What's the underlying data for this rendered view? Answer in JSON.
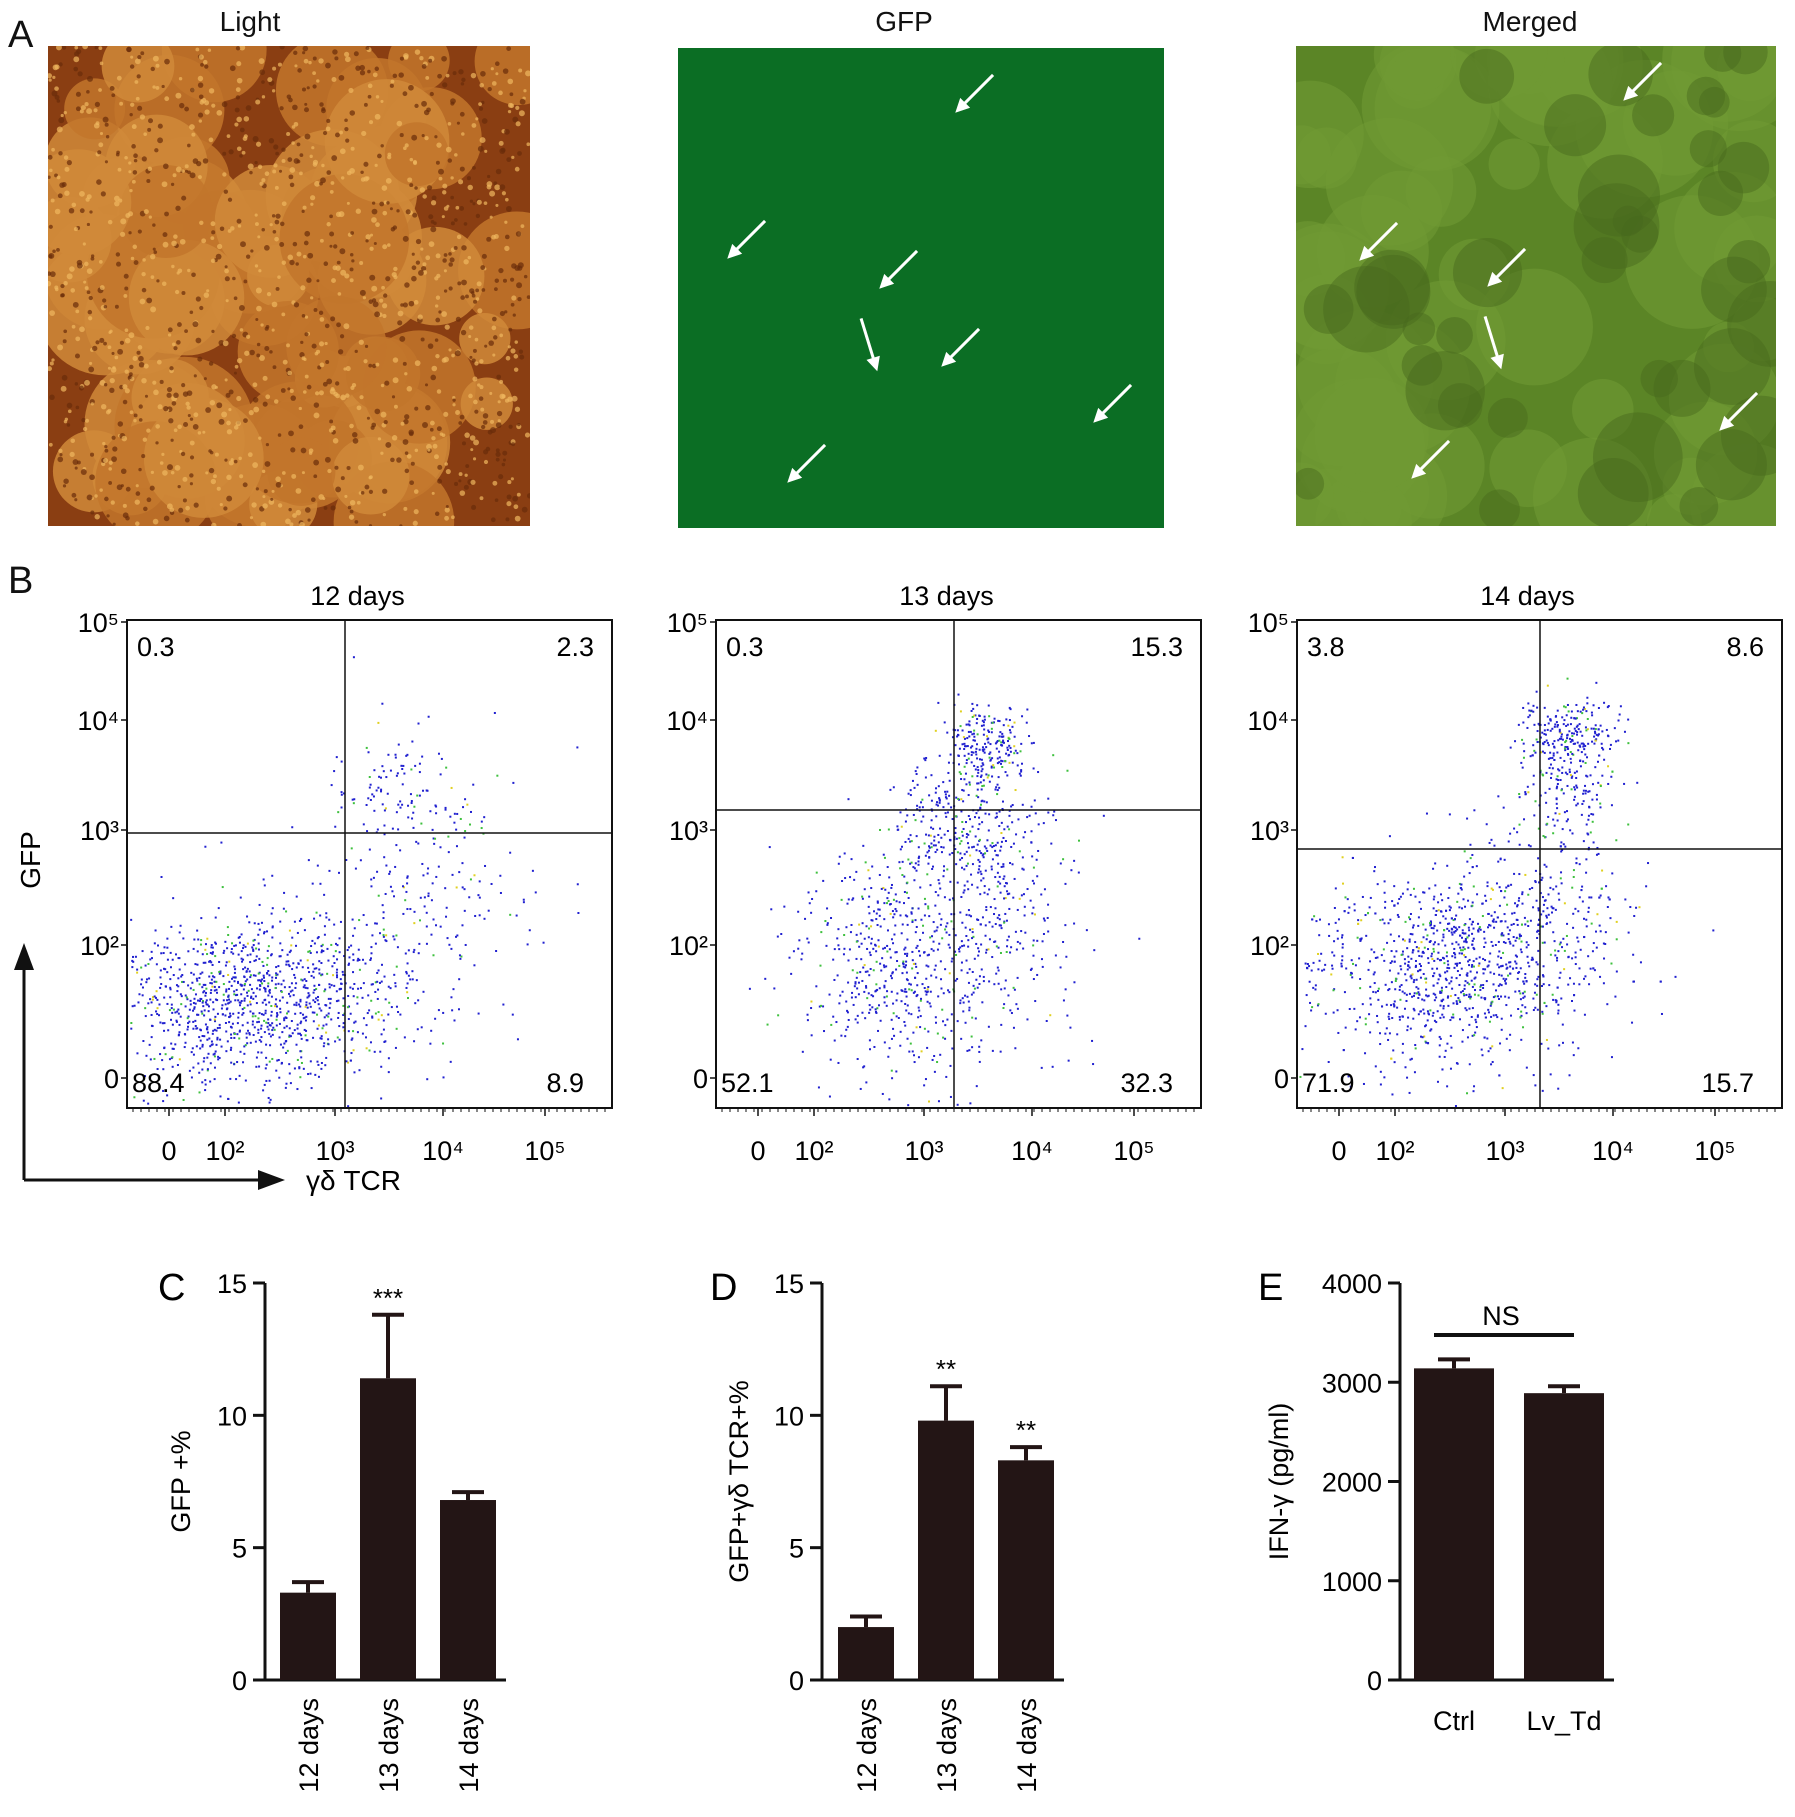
{
  "panelA": {
    "letter": "A",
    "images": [
      {
        "title": "Light",
        "kind": "brightfield"
      },
      {
        "title": "GFP",
        "kind": "fluorescence"
      },
      {
        "title": "Merged",
        "kind": "merged"
      }
    ],
    "colors": {
      "light": "#b5651d",
      "gfp": "#0d7a2a",
      "merged": "#5f8a2a"
    }
  },
  "panelB": {
    "letter": "B",
    "axes": {
      "x_label": "γδ TCR",
      "y_label": "GFP",
      "x_ticks": [
        "0",
        "10²",
        "10³",
        "10⁴",
        "10⁵"
      ],
      "y_ticks": [
        "0",
        "10²",
        "10³",
        "10⁴",
        "10⁵"
      ]
    },
    "plots": [
      {
        "title": "12 days",
        "q_ul": "0.3",
        "q_ur": "2.3",
        "q_ll": "88.4",
        "q_lr": "8.9"
      },
      {
        "title": "13 days",
        "q_ul": "0.3",
        "q_ur": "15.3",
        "q_ll": "52.1",
        "q_lr": "32.3"
      },
      {
        "title": "14 days",
        "q_ul": "3.8",
        "q_ur": "8.6",
        "q_ll": "71.9",
        "q_lr": "15.7"
      }
    ]
  },
  "chart_data": [
    {
      "panel": "C",
      "type": "bar",
      "categories": [
        "12 days",
        "13 days",
        "14 days"
      ],
      "values": [
        3.3,
        11.4,
        6.8
      ],
      "errors": [
        0.4,
        2.4,
        0.3
      ],
      "annotations": [
        "",
        "***",
        ""
      ],
      "ylabel": "GFP +%",
      "ylim": [
        0,
        15
      ],
      "yticks": [
        0,
        5,
        10,
        15
      ]
    },
    {
      "panel": "D",
      "type": "bar",
      "categories": [
        "12 days",
        "13 days",
        "14 days"
      ],
      "values": [
        2.0,
        9.8,
        8.3
      ],
      "errors": [
        0.4,
        1.3,
        0.5
      ],
      "annotations": [
        "",
        "**",
        "**"
      ],
      "ylabel": "GFP+γδ TCR+%",
      "ylim": [
        0,
        15
      ],
      "yticks": [
        0,
        5,
        10,
        15
      ]
    },
    {
      "panel": "E",
      "type": "bar",
      "categories": [
        "Ctrl",
        "Lv_Td"
      ],
      "values": [
        3140,
        2890
      ],
      "errors": [
        90,
        70
      ],
      "annotations": [],
      "significance": "NS",
      "ylabel": "IFN-γ (pg/ml)",
      "ylim": [
        0,
        4000
      ],
      "yticks": [
        0,
        1000,
        2000,
        3000,
        4000
      ]
    }
  ]
}
